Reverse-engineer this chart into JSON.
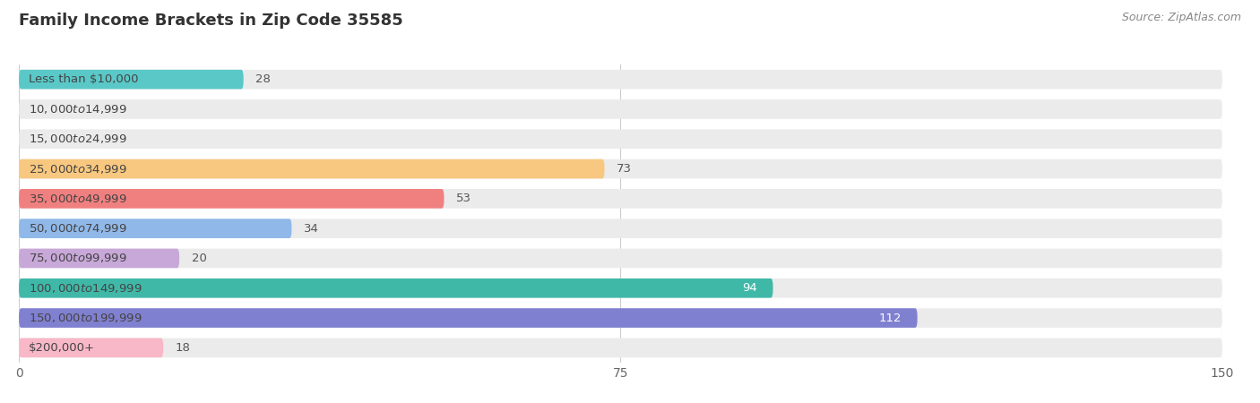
{
  "title": "Family Income Brackets in Zip Code 35585",
  "source": "Source: ZipAtlas.com",
  "categories": [
    "Less than $10,000",
    "$10,000 to $14,999",
    "$15,000 to $24,999",
    "$25,000 to $34,999",
    "$35,000 to $49,999",
    "$50,000 to $74,999",
    "$75,000 to $99,999",
    "$100,000 to $149,999",
    "$150,000 to $199,999",
    "$200,000+"
  ],
  "values": [
    28,
    0,
    0,
    73,
    53,
    34,
    20,
    94,
    112,
    18
  ],
  "bar_colors": [
    "#5bc8c8",
    "#b0a8e0",
    "#f4a0b0",
    "#f8c880",
    "#f08080",
    "#90b8e8",
    "#c8a8d8",
    "#40b8a8",
    "#8080d0",
    "#f8b8c8"
  ],
  "xlim_min": 0,
  "xlim_max": 150,
  "xticks": [
    0,
    75,
    150
  ],
  "bar_bg_color": "#ebebeb",
  "title_fontsize": 13,
  "label_fontsize": 9.5,
  "value_fontsize": 9.5,
  "value_color_inside": "#ffffff",
  "value_color_outside": "#555555"
}
